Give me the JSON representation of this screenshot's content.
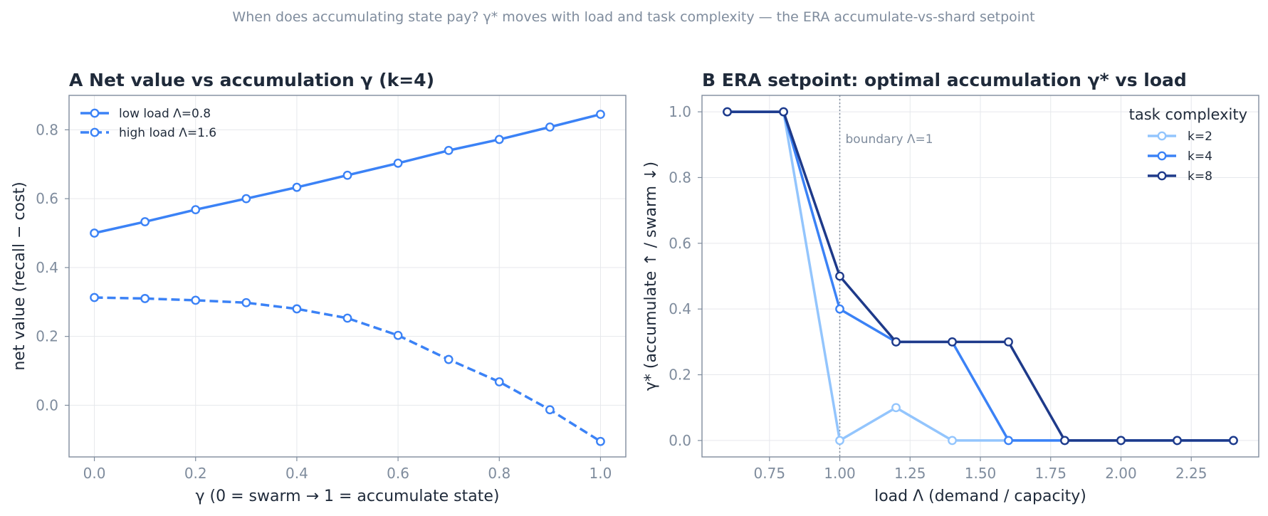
{
  "suptitle": "When does accumulating state pay? γ* moves with load and task complexity — the ERA accumulate-vs-shard setpoint",
  "colors": {
    "light": "#93c5fd",
    "mid": "#3b82f6",
    "dark": "#1e3a8a",
    "text": "#1f2a3a",
    "muted": "#7f8c9d"
  },
  "chart_data": [
    {
      "type": "line",
      "title": "A  Net value vs accumulation γ (k=4)",
      "xlabel": "γ  (0 = swarm → 1 = accumulate state)",
      "ylabel": "net value (recall − cost)",
      "xlim": [
        -0.05,
        1.05
      ],
      "ylim": [
        -0.15,
        0.9
      ],
      "xticks": [
        0.0,
        0.2,
        0.4,
        0.6,
        0.8,
        1.0
      ],
      "xtick_labels": [
        "0.0",
        "0.2",
        "0.4",
        "0.6",
        "0.8",
        "1.0"
      ],
      "yticks": [
        0.0,
        0.2,
        0.4,
        0.6,
        0.8
      ],
      "ytick_labels": [
        "0.0",
        "0.2",
        "0.4",
        "0.6",
        "0.8"
      ],
      "grid": true,
      "legend": {
        "position": "top-left"
      },
      "x": [
        0.0,
        0.1,
        0.2,
        0.3,
        0.4,
        0.5,
        0.6,
        0.7,
        0.8,
        0.9,
        1.0
      ],
      "series": [
        {
          "name": "low load Λ=0.8",
          "color": "#3b82f6",
          "style": "solid",
          "values": [
            0.5,
            0.533,
            0.568,
            0.6,
            0.633,
            0.668,
            0.703,
            0.74,
            0.772,
            0.808,
            0.845
          ]
        },
        {
          "name": "high load Λ=1.6",
          "color": "#3b82f6",
          "style": "dashed",
          "values": [
            0.313,
            0.31,
            0.305,
            0.298,
            0.28,
            0.253,
            0.203,
            0.133,
            0.068,
            -0.013,
            -0.105
          ]
        }
      ]
    },
    {
      "type": "line",
      "title": "B  ERA setpoint: optimal accumulation γ* vs load",
      "xlabel": "load Λ (demand / capacity)",
      "ylabel": "γ*  (accumulate ↑ / swarm ↓)",
      "xlim": [
        0.51,
        2.49
      ],
      "ylim": [
        -0.05,
        1.05
      ],
      "xticks": [
        0.75,
        1.0,
        1.25,
        1.5,
        1.75,
        2.0,
        2.25
      ],
      "xtick_labels": [
        "0.75",
        "1.00",
        "1.25",
        "1.50",
        "1.75",
        "2.00",
        "2.25"
      ],
      "yticks": [
        0.0,
        0.2,
        0.4,
        0.6,
        0.8,
        1.0
      ],
      "ytick_labels": [
        "0.0",
        "0.2",
        "0.4",
        "0.6",
        "0.8",
        "1.0"
      ],
      "grid": true,
      "legend": {
        "position": "top-right",
        "title": "task complexity"
      },
      "annotation": {
        "text": "boundary Λ=1",
        "x": 1.0
      },
      "series": [
        {
          "name": "k=2",
          "color": "#93c5fd",
          "x": [
            0.6,
            0.8,
            1.0,
            1.2,
            1.4,
            1.6,
            1.8,
            2.0,
            2.2,
            2.4
          ],
          "values": [
            1.0,
            1.0,
            0.0,
            0.1,
            0.0,
            0.0,
            0.0,
            0.0,
            0.0,
            0.0
          ]
        },
        {
          "name": "k=4",
          "color": "#3b82f6",
          "x": [
            0.6,
            0.8,
            1.0,
            1.2,
            1.4,
            1.6,
            1.8,
            2.0,
            2.2,
            2.4
          ],
          "values": [
            1.0,
            1.0,
            0.4,
            0.3,
            0.3,
            0.0,
            0.0,
            0.0,
            0.0,
            0.0
          ]
        },
        {
          "name": "k=8",
          "color": "#1e3a8a",
          "x": [
            0.6,
            0.8,
            1.0,
            1.2,
            1.4,
            1.6,
            1.8,
            2.0,
            2.2,
            2.4
          ],
          "values": [
            1.0,
            1.0,
            0.5,
            0.3,
            0.3,
            0.3,
            0.0,
            0.0,
            0.0,
            0.0
          ]
        }
      ]
    }
  ]
}
